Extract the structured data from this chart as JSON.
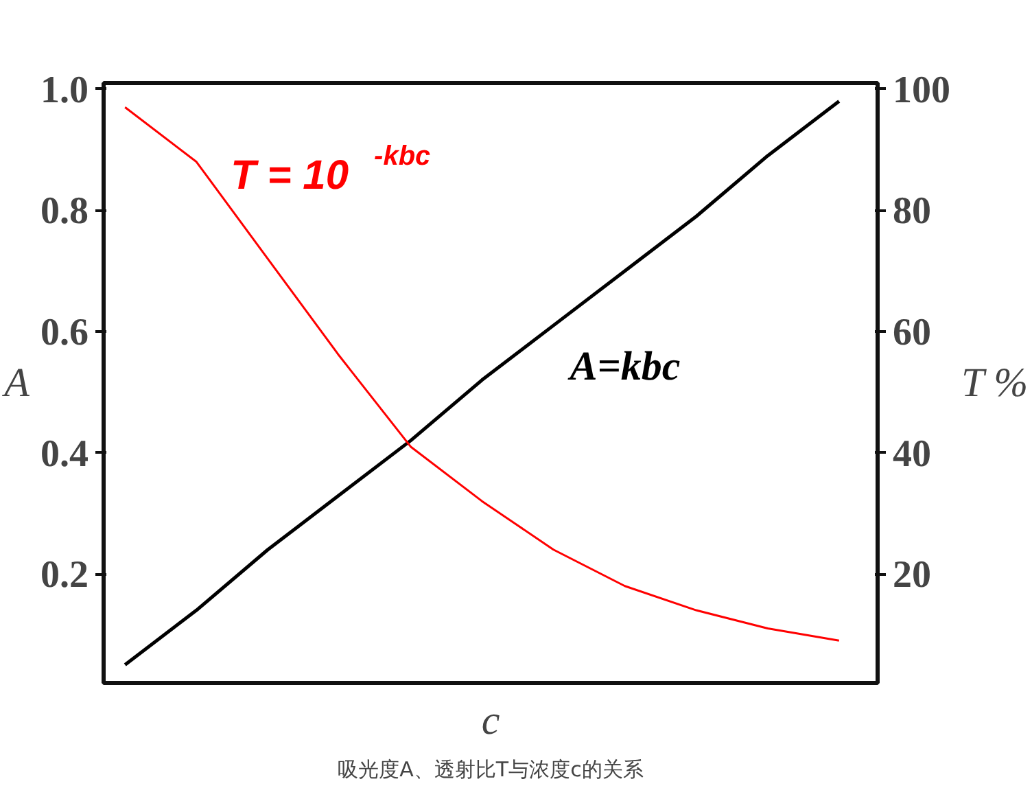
{
  "chart_data": {
    "type": "line",
    "title": "吸光度A、透射比T与浓度c的关系",
    "xlabel": "c",
    "ylabel": "A",
    "y2label": "T %",
    "categories": [
      null,
      null,
      null,
      null,
      null,
      null,
      null,
      null,
      null,
      null,
      null
    ],
    "series": [
      {
        "name": "A=kbc",
        "color": "#000000",
        "values": [
          0.05,
          0.14,
          0.24,
          0.33,
          0.42,
          0.52,
          0.61,
          0.7,
          0.79,
          0.89,
          0.98
        ]
      },
      {
        "name": "T = 10$^{-kbc}$",
        "color": "#ff0000",
        "axis": "y2",
        "values": [
          97,
          88,
          72,
          56,
          41,
          32,
          24,
          18,
          14,
          11,
          9
        ]
      }
    ],
    "ylim": [
      0.02,
      1.01
    ],
    "yticks": [
      0.2,
      0.4,
      0.6,
      0.8,
      {
        "value": 1,
        "label": "1.0"
      }
    ],
    "y2lim": [
      2,
      101
    ],
    "y2ticks": [
      20,
      40,
      60,
      80,
      100
    ],
    "grid": false
  }
}
